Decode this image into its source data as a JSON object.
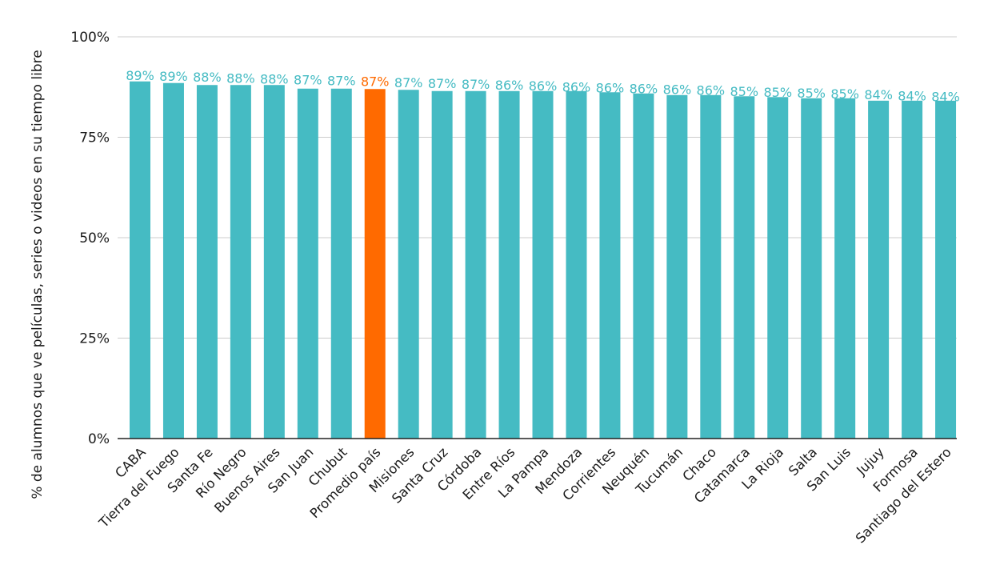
{
  "chart_data": {
    "type": "bar",
    "title": "",
    "xlabel": "",
    "ylabel": "% de alumnos que ve películas, series o videos en su tiempo libre",
    "ylim": [
      0,
      100
    ],
    "yticks": [
      0,
      25,
      50,
      75,
      100
    ],
    "ytick_labels": [
      "0%",
      "25%",
      "50%",
      "75%",
      "100%"
    ],
    "grid": true,
    "legend": "none",
    "colors": {
      "default": "#45BBC3",
      "highlight": "#FF6A00",
      "grid": "#cccccc",
      "axis": "#222222"
    },
    "highlight_category": "Promedio país",
    "categories": [
      "CABA",
      "Tierra del Fuego",
      "Santa Fe",
      "Río Negro",
      "Buenos Aires",
      "San Juan",
      "Chubut",
      "Promedio país",
      "Misiones",
      "Santa Cruz",
      "Córdoba",
      "Entre Ríos",
      "La Pampa",
      "Mendoza",
      "Corrientes",
      "Neuquén",
      "Tucumán",
      "Chaco",
      "Catamarca",
      "La Rioja",
      "Salta",
      "San Luis",
      "Jujuy",
      "Formosa",
      "Santiago del Estero"
    ],
    "values": [
      88.9,
      88.5,
      88.0,
      88.0,
      88.0,
      87.1,
      87.1,
      87.0,
      86.8,
      86.5,
      86.5,
      86.5,
      86.5,
      86.5,
      86.2,
      85.9,
      85.5,
      85.5,
      85.2,
      85.0,
      84.7,
      84.7,
      84.1,
      84.1,
      84.1
    ],
    "data_labels": [
      "89%",
      "89%",
      "88%",
      "88%",
      "88%",
      "87%",
      "87%",
      "87%",
      "87%",
      "87%",
      "87%",
      "86%",
      "86%",
      "86%",
      "86%",
      "86%",
      "86%",
      "86%",
      "85%",
      "85%",
      "85%",
      "85%",
      "84%",
      "84%",
      "84%"
    ]
  }
}
